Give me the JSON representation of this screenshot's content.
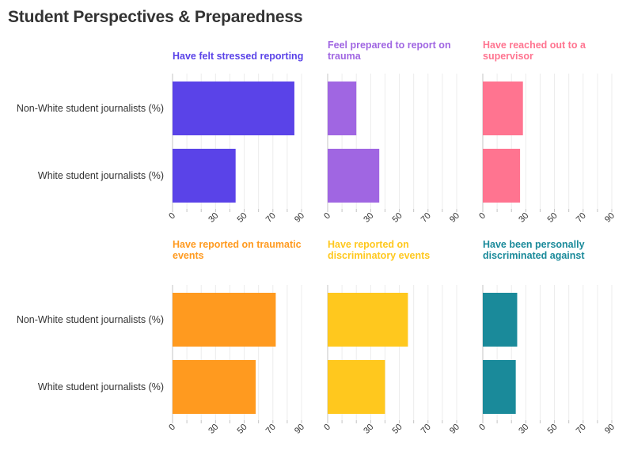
{
  "title": "Student Perspectives & Preparedness",
  "chart_data": {
    "type": "bar",
    "orientation": "horizontal",
    "layout": "small multiples, 2 rows x 3 columns",
    "categories": [
      "Non-White student journalists (%)",
      "White student journalists (%)"
    ],
    "xlim": [
      0,
      90
    ],
    "xticks": [
      0,
      10,
      20,
      30,
      40,
      50,
      60,
      70,
      80,
      90
    ],
    "xtick_labels": [
      "0",
      "30",
      "50",
      "70",
      "90"
    ],
    "grid": true,
    "panels": [
      {
        "title_lines": [
          "Have felt stressed reporting"
        ],
        "color": "#5a43e8",
        "values": [
          85,
          44
        ]
      },
      {
        "title_lines": [
          "Feel prepared to report on",
          "trauma"
        ],
        "color": "#a066e2",
        "values": [
          20,
          36
        ]
      },
      {
        "title_lines": [
          "Have reached out to a",
          "supervisor"
        ],
        "color": "#ff7490",
        "values": [
          28,
          26
        ]
      },
      {
        "title_lines": [
          "Have reported on traumatic",
          "events"
        ],
        "color": "#ff9a1f",
        "values": [
          72,
          58
        ]
      },
      {
        "title_lines": [
          "Have reported on",
          "discriminatory events"
        ],
        "color": "#ffc81e",
        "values": [
          56,
          40
        ]
      },
      {
        "title_lines": [
          "Have been personally",
          "discriminated against"
        ],
        "color": "#1a8a9a",
        "values": [
          24,
          23
        ]
      }
    ]
  }
}
